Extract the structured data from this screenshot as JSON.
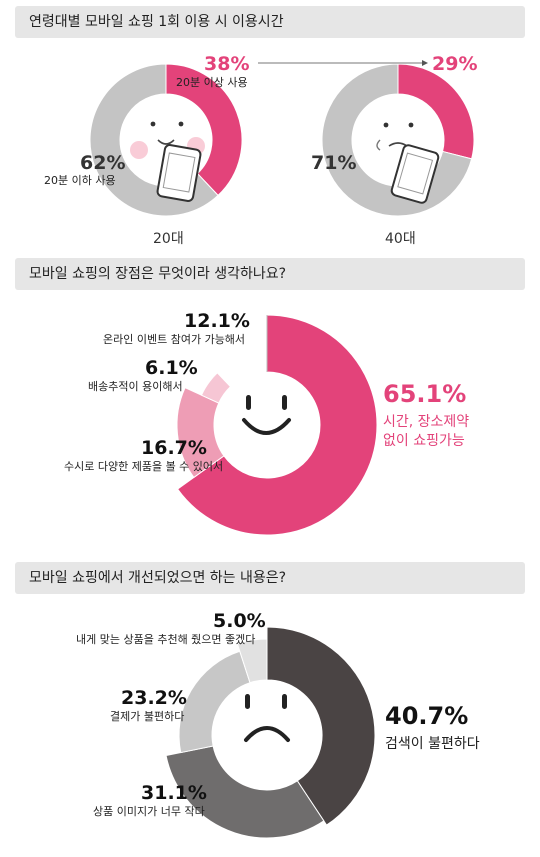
{
  "colors": {
    "pink": "#e3437a",
    "gray": "#c4c4c4",
    "light_pink_1": "#f6c6d4",
    "light_pink_2": "#ee9db5",
    "dark": "#4a4444",
    "mid_gray": "#6f6d6d",
    "light_gray": "#c7c7c7",
    "lighter_gray": "#e1e1e1"
  },
  "section1": {
    "title": "연령대별 모바일 쇼핑 1회 이용 시 이용시간",
    "chart_data": [
      {
        "type": "pie",
        "title": "20대",
        "categories": [
          "20분 이상 사용",
          "20분 이하 사용"
        ],
        "values": [
          38,
          62
        ],
        "value_labels": [
          "38%",
          "62%"
        ]
      },
      {
        "type": "pie",
        "title": "40대",
        "categories": [
          "20분 이상 사용",
          "20분 이하 사용"
        ],
        "values": [
          29,
          71
        ],
        "value_labels": [
          "29%",
          "71%"
        ]
      }
    ]
  },
  "section2": {
    "title": "모바일 쇼핑의 장점은 무엇이라 생각하나요?",
    "chart_data": {
      "type": "pie",
      "categories": [
        "시간, 장소제약 없이 쇼핑가능",
        "수시로 다양한 제품을 볼 수 있어서",
        "배송추적이 용이해서",
        "온라인 이벤트 참여가 가능해서"
      ],
      "values": [
        65.1,
        16.7,
        6.1,
        12.1
      ],
      "value_labels": [
        "65.1%",
        "16.7%",
        "6.1%",
        "12.1%"
      ],
      "main_label_lines": [
        "시간, 장소제약",
        "없이 쇼핑가능"
      ]
    }
  },
  "section3": {
    "title": "모바일 쇼핑에서 개선되었으면 하는 내용은?",
    "chart_data": {
      "type": "pie",
      "categories": [
        "검색이 불편하다",
        "상품 이미지가 너무 작다",
        "결제가 불편하다",
        "내게 맞는 상품을 추천해 줬으면 좋겠다"
      ],
      "values": [
        40.7,
        31.1,
        23.2,
        5.0
      ],
      "value_labels": [
        "40.7%",
        "31.1%",
        "23.2%",
        "5.0%"
      ]
    }
  }
}
